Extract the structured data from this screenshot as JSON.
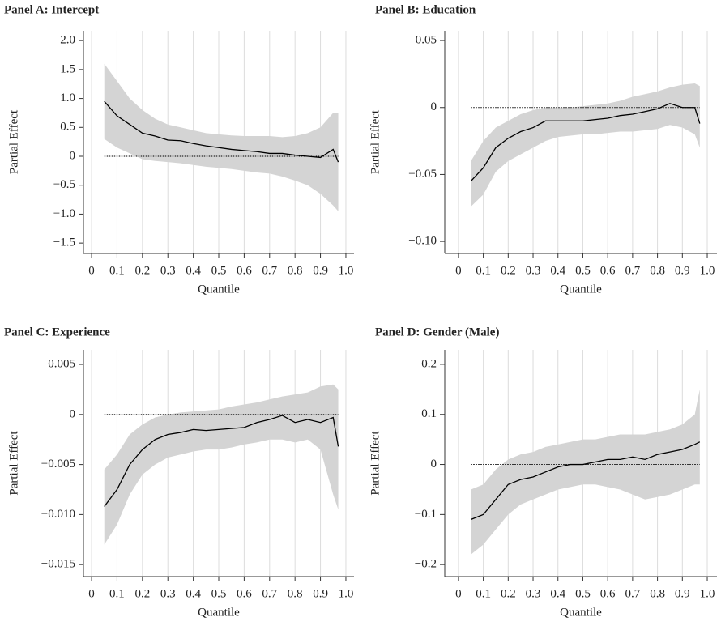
{
  "chart_data": [
    {
      "type": "line",
      "title": "Panel A: Intercept",
      "xlabel": "Quantile",
      "ylabel": "Partial Effect",
      "x": [
        0.05,
        0.1,
        0.15,
        0.2,
        0.25,
        0.3,
        0.35,
        0.4,
        0.45,
        0.5,
        0.55,
        0.6,
        0.65,
        0.7,
        0.75,
        0.8,
        0.85,
        0.9,
        0.95,
        0.97
      ],
      "values": [
        0.95,
        0.7,
        0.55,
        0.4,
        0.35,
        0.28,
        0.27,
        0.22,
        0.18,
        0.15,
        0.12,
        0.1,
        0.08,
        0.05,
        0.05,
        0.02,
        0.0,
        -0.02,
        0.12,
        -0.1
      ],
      "upper": [
        1.6,
        1.3,
        1.0,
        0.8,
        0.65,
        0.55,
        0.5,
        0.45,
        0.4,
        0.38,
        0.36,
        0.35,
        0.35,
        0.35,
        0.33,
        0.35,
        0.4,
        0.5,
        0.75,
        0.75
      ],
      "lower": [
        0.3,
        0.15,
        0.05,
        -0.05,
        -0.08,
        -0.1,
        -0.12,
        -0.15,
        -0.18,
        -0.2,
        -0.22,
        -0.25,
        -0.28,
        -0.3,
        -0.35,
        -0.42,
        -0.5,
        -0.65,
        -0.85,
        -0.95
      ],
      "xlim": [
        -0.032,
        1.032
      ],
      "ylim": [
        -1.68,
        2.17
      ],
      "xticks": [
        0,
        0.1,
        0.2,
        0.3,
        0.4,
        0.5,
        0.6,
        0.7,
        0.8,
        0.9,
        {
          "value": 1,
          "label": "1.0"
        }
      ],
      "yticks": [
        {
          "value": -1.5,
          "label": "−1.5"
        },
        {
          "value": -1,
          "label": "−1.0"
        },
        {
          "value": -0.5,
          "label": "−0.5"
        },
        0,
        0.5,
        {
          "value": 1,
          "label": "1.0"
        },
        1.5,
        {
          "value": 2,
          "label": "2.0"
        }
      ],
      "grid": "x",
      "zero_line": true,
      "color": "#000000",
      "band_color": "#d4d4d4"
    },
    {
      "type": "line",
      "title": "Panel B: Education",
      "xlabel": "Quantile",
      "ylabel": "Partial Effect",
      "x": [
        0.05,
        0.1,
        0.15,
        0.2,
        0.25,
        0.3,
        0.35,
        0.4,
        0.45,
        0.5,
        0.55,
        0.6,
        0.65,
        0.7,
        0.75,
        0.8,
        0.85,
        0.9,
        0.95,
        0.97
      ],
      "values": [
        -0.055,
        -0.045,
        -0.03,
        -0.023,
        -0.018,
        -0.015,
        -0.01,
        -0.01,
        -0.01,
        -0.01,
        -0.009,
        -0.008,
        -0.006,
        -0.005,
        -0.003,
        -0.001,
        0.003,
        0.0,
        0.0,
        -0.012
      ],
      "upper": [
        -0.04,
        -0.025,
        -0.015,
        -0.01,
        -0.005,
        -0.002,
        0.0,
        0.0,
        0.0,
        0.001,
        0.002,
        0.003,
        0.005,
        0.008,
        0.01,
        0.012,
        0.015,
        0.017,
        0.018,
        0.016
      ],
      "lower": [
        -0.074,
        -0.065,
        -0.048,
        -0.04,
        -0.035,
        -0.03,
        -0.025,
        -0.022,
        -0.021,
        -0.02,
        -0.02,
        -0.019,
        -0.018,
        -0.018,
        -0.017,
        -0.016,
        -0.013,
        -0.015,
        -0.02,
        -0.03
      ],
      "xlim": [
        -0.055,
        1.039
      ],
      "ylim": [
        -0.109,
        0.0573
      ],
      "xticks": [
        0,
        0.1,
        0.2,
        0.3,
        0.4,
        0.5,
        0.6,
        0.7,
        0.8,
        0.9,
        {
          "value": 1,
          "label": "1.0"
        }
      ],
      "yticks": [
        {
          "value": -0.1,
          "label": "−0.10"
        },
        {
          "value": -0.05,
          "label": "−0.05"
        },
        0,
        0.05
      ],
      "grid": "x",
      "zero_line": true,
      "color": "#000000",
      "band_color": "#d4d4d4"
    },
    {
      "type": "line",
      "title": "Panel C: Experience",
      "xlabel": "Quantile",
      "ylabel": "Partial Effect",
      "x": [
        0.05,
        0.1,
        0.15,
        0.2,
        0.25,
        0.3,
        0.35,
        0.4,
        0.45,
        0.5,
        0.55,
        0.6,
        0.65,
        0.7,
        0.75,
        0.8,
        0.85,
        0.9,
        0.95,
        0.97
      ],
      "values": [
        -0.0092,
        -0.0075,
        -0.005,
        -0.0035,
        -0.0025,
        -0.002,
        -0.0018,
        -0.0015,
        -0.0016,
        -0.0015,
        -0.0014,
        -0.0013,
        -0.0008,
        -0.0005,
        -0.0001,
        -0.0008,
        -0.0005,
        -0.0008,
        -0.0003,
        -0.0032
      ],
      "upper": [
        -0.0055,
        -0.004,
        -0.002,
        -0.001,
        -0.0003,
        0.0,
        0.0002,
        0.0003,
        0.0004,
        0.0005,
        0.0008,
        0.001,
        0.0012,
        0.0015,
        0.0018,
        0.002,
        0.0022,
        0.0028,
        0.003,
        0.0025
      ],
      "lower": [
        -0.013,
        -0.011,
        -0.008,
        -0.006,
        -0.005,
        -0.0043,
        -0.004,
        -0.0037,
        -0.0035,
        -0.0035,
        -0.0033,
        -0.003,
        -0.0028,
        -0.0025,
        -0.0025,
        -0.0028,
        -0.0025,
        -0.0035,
        -0.008,
        -0.0095
      ],
      "xlim": [
        -0.032,
        1.032
      ],
      "ylim": [
        -0.0162,
        0.00646
      ],
      "xticks": [
        0,
        0.1,
        0.2,
        0.3,
        0.4,
        0.5,
        0.6,
        0.7,
        0.8,
        0.9,
        {
          "value": 1,
          "label": "1.0"
        }
      ],
      "yticks": [
        {
          "value": -0.015,
          "label": "−0.015"
        },
        {
          "value": -0.01,
          "label": "−0.010"
        },
        {
          "value": -0.005,
          "label": "−0.005"
        },
        0,
        0.005
      ],
      "grid": "x",
      "zero_line": true,
      "color": "#000000",
      "band_color": "#d4d4d4"
    },
    {
      "type": "line",
      "title": "Panel D: Gender (Male)",
      "xlabel": "Quantile",
      "ylabel": "Partial Effect",
      "x": [
        0.05,
        0.1,
        0.15,
        0.2,
        0.25,
        0.3,
        0.35,
        0.4,
        0.45,
        0.5,
        0.55,
        0.6,
        0.65,
        0.7,
        0.75,
        0.8,
        0.85,
        0.9,
        0.95,
        0.97
      ],
      "values": [
        -0.11,
        -0.1,
        -0.07,
        -0.04,
        -0.03,
        -0.025,
        -0.015,
        -0.005,
        0.0,
        0.0,
        0.005,
        0.01,
        0.01,
        0.015,
        0.01,
        0.02,
        0.025,
        0.03,
        0.04,
        0.045
      ],
      "upper": [
        -0.05,
        -0.04,
        -0.01,
        0.01,
        0.02,
        0.025,
        0.035,
        0.04,
        0.045,
        0.05,
        0.05,
        0.055,
        0.06,
        0.06,
        0.06,
        0.065,
        0.07,
        0.08,
        0.1,
        0.15
      ],
      "lower": [
        -0.18,
        -0.16,
        -0.13,
        -0.1,
        -0.08,
        -0.07,
        -0.06,
        -0.05,
        -0.045,
        -0.04,
        -0.04,
        -0.045,
        -0.05,
        -0.06,
        -0.07,
        -0.065,
        -0.06,
        -0.05,
        -0.04,
        -0.04
      ],
      "xlim": [
        -0.055,
        1.039
      ],
      "ylim": [
        -0.224,
        0.229
      ],
      "xticks": [
        0,
        0.1,
        0.2,
        0.3,
        0.4,
        0.5,
        0.6,
        0.7,
        0.8,
        0.9,
        {
          "value": 1,
          "label": "1.0"
        }
      ],
      "yticks": [
        {
          "value": -0.2,
          "label": "−0.2"
        },
        {
          "value": -0.1,
          "label": "−0.1"
        },
        0,
        0.1,
        0.2
      ],
      "grid": "x",
      "zero_line": true,
      "color": "#000000",
      "band_color": "#d4d4d4"
    }
  ]
}
